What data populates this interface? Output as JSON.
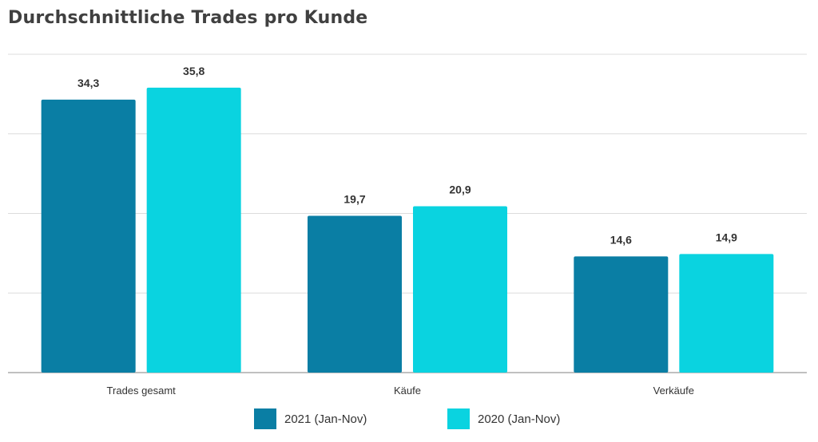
{
  "chart_data": {
    "type": "bar",
    "title": "Durchschnittliche Trades pro Kunde",
    "categories": [
      "Trades gesamt",
      "Käufe",
      "Verkäufe"
    ],
    "series": [
      {
        "name": "2021 (Jan-Nov)",
        "values": [
          34.3,
          19.7,
          14.6
        ],
        "labels": [
          "34,3",
          "19,7",
          "14,6"
        ],
        "color": "#0a7ea4"
      },
      {
        "name": "2020 (Jan-Nov)",
        "values": [
          35.8,
          20.9,
          14.9
        ],
        "labels": [
          "35,8",
          "20,9",
          "14,9"
        ],
        "color": "#0ad3e0"
      }
    ],
    "ylim": [
      0,
      40
    ],
    "grid": true,
    "legend": "bottom-center",
    "xlabel": "",
    "ylabel": ""
  }
}
